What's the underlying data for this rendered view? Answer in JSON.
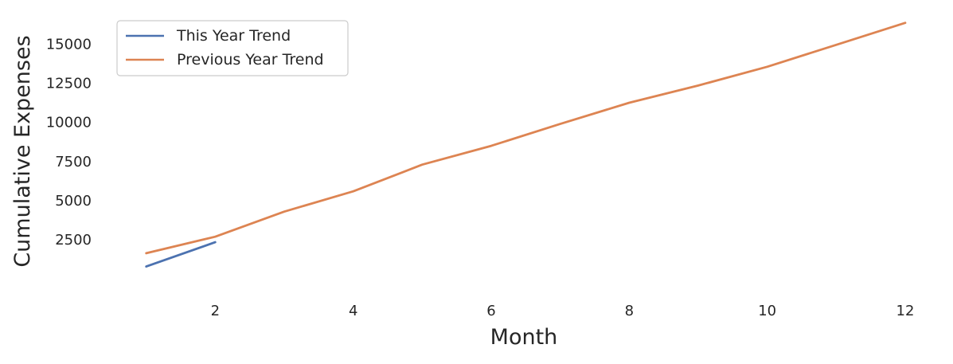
{
  "chart_data": {
    "type": "line",
    "title": "",
    "xlabel": "Month",
    "ylabel": "Cumulative Expenses",
    "xlim": [
      0.3,
      12.3
    ],
    "ylim": [
      -1000,
      17200
    ],
    "xticks": [
      2,
      4,
      6,
      8,
      10,
      12
    ],
    "xtick_labels": [
      "2",
      "4",
      "6",
      "8",
      "10",
      "12"
    ],
    "yticks": [
      2500,
      5000,
      7500,
      10000,
      12500,
      15000
    ],
    "ytick_labels": [
      "2500",
      "5000",
      "7500",
      "10000",
      "12500",
      "15000"
    ],
    "grid": false,
    "legend_position": "top-left",
    "series": [
      {
        "name": "This Year Trend",
        "color": "#4c72b0",
        "x": [
          1,
          2
        ],
        "y": [
          800,
          2350
        ]
      },
      {
        "name": "Previous Year Trend",
        "color": "#dd8452",
        "x": [
          1,
          2,
          3,
          4,
          5,
          6,
          7,
          8,
          9,
          10,
          11,
          12
        ],
        "y": [
          1650,
          2700,
          4300,
          5600,
          7300,
          8500,
          9900,
          11250,
          12350,
          13550,
          14950,
          16350
        ]
      }
    ]
  }
}
